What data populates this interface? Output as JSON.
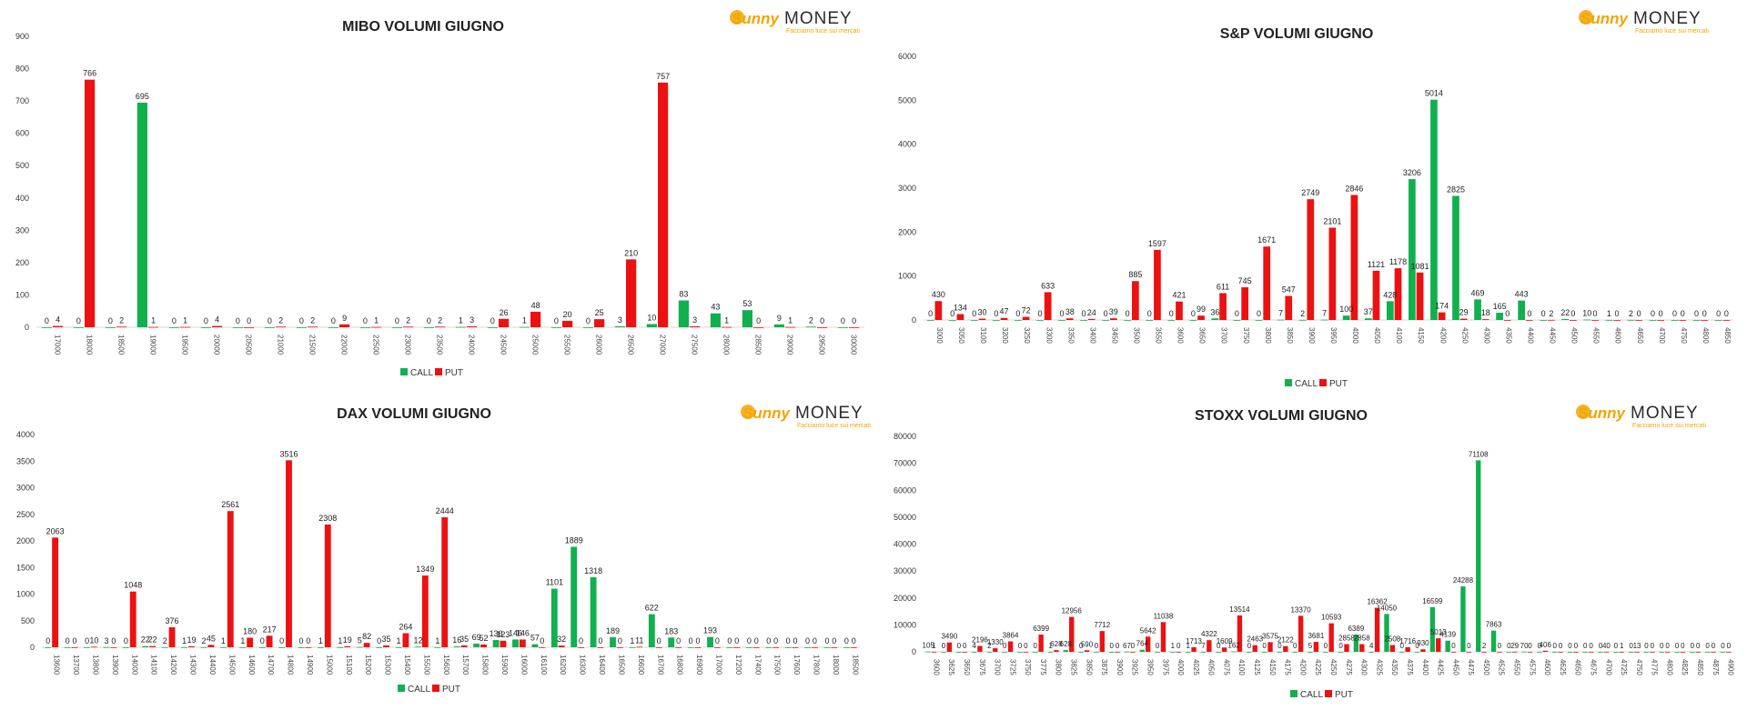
{
  "colors": {
    "call": "#11b04f",
    "put": "#ee1111",
    "axis": "#d9d9d9",
    "text": "#222222",
    "logo_orange": "#f5a400",
    "logo_dark": "#2b2b2b"
  },
  "logo": {
    "brand_a": "Sunny",
    "brand_b": "MONEY",
    "tagline": "Facciamo luce sui mercati"
  },
  "legend": {
    "call": "CALL",
    "put": "PUT"
  },
  "charts": [
    {
      "title": "MIBO VOLUMI GIUGNO",
      "chart_data": {
        "type": "bar",
        "title": "MIBO VOLUMI GIUGNO",
        "ylim": [
          0,
          900
        ],
        "yticks": [
          0,
          100,
          200,
          300,
          400,
          500,
          600,
          700,
          800,
          900
        ],
        "categories": [
          "17000",
          "18000",
          "18500",
          "19000",
          "19500",
          "20000",
          "20500",
          "21000",
          "21500",
          "22000",
          "22500",
          "23000",
          "23500",
          "24000",
          "24500",
          "25000",
          "25500",
          "26000",
          "26500",
          "27000",
          "27500",
          "28000",
          "28500",
          "29000",
          "29500",
          "30000"
        ],
        "series": [
          {
            "name": "CALL",
            "values": [
              0,
              0,
              0,
              695,
              0,
              0,
              0,
              0,
              0,
              0,
              0,
              0,
              0,
              1,
              0,
              1,
              0,
              0,
              3,
              10,
              83,
              43,
              53,
              9,
              2,
              0
            ]
          },
          {
            "name": "PUT",
            "values": [
              4,
              766,
              2,
              1,
              1,
              4,
              0,
              2,
              2,
              9,
              1,
              2,
              2,
              3,
              26,
              48,
              20,
              25,
              210,
              757,
              3,
              1,
              0,
              1,
              0,
              0
            ]
          }
        ]
      }
    },
    {
      "title": "S&P VOLUMI GIUGNO",
      "chart_data": {
        "type": "bar",
        "title": "S&P VOLUMI GIUGNO",
        "ylim": [
          0,
          6000
        ],
        "yticks": [
          0,
          1000,
          2000,
          3000,
          4000,
          5000,
          6000
        ],
        "categories": [
          "3000",
          "3050",
          "3100",
          "3200",
          "3250",
          "3300",
          "3350",
          "3400",
          "3450",
          "3500",
          "3550",
          "3600",
          "3650",
          "3700",
          "3750",
          "3800",
          "3850",
          "3900",
          "3950",
          "4000",
          "4050",
          "4100",
          "4150",
          "4200",
          "4250",
          "4300",
          "4350",
          "4400",
          "4450",
          "4500",
          "4550",
          "4600",
          "4650",
          "4700",
          "4750",
          "4800",
          "4850"
        ],
        "series": [
          {
            "name": "CALL",
            "values": [
              0,
              0,
              0,
              0,
              0,
              0,
              0,
              0,
              0,
              0,
              0,
              0,
              0,
              36,
              0,
              0,
              7,
              2,
              7,
              100,
              37,
              428,
              3206,
              5014,
              2825,
              469,
              165,
              443,
              0,
              22,
              10,
              1,
              2,
              0,
              0,
              0,
              0
            ]
          },
          {
            "name": "PUT",
            "values": [
              430,
              134,
              30,
              47,
              72,
              633,
              38,
              24,
              39,
              885,
              1597,
              421,
              99,
              611,
              745,
              1671,
              547,
              2749,
              2101,
              2846,
              1121,
              1178,
              1081,
              174,
              29,
              18,
              0,
              0,
              2,
              0,
              0,
              0,
              0,
              0,
              0,
              0,
              0
            ]
          }
        ]
      }
    },
    {
      "title": "DAX VOLUMI GIUGNO",
      "chart_data": {
        "type": "bar",
        "title": "DAX VOLUMI GIUGNO",
        "ylim": [
          0,
          4000
        ],
        "yticks": [
          0,
          500,
          1000,
          1500,
          2000,
          2500,
          3000,
          3500,
          4000
        ],
        "categories": [
          "13600",
          "13700",
          "13800",
          "13900",
          "14000",
          "14100",
          "14200",
          "14300",
          "14400",
          "14500",
          "14600",
          "14700",
          "14800",
          "14900",
          "15000",
          "15100",
          "15200",
          "15300",
          "15400",
          "15500",
          "15600",
          "15700",
          "15800",
          "15900",
          "16000",
          "16100",
          "16200",
          "16300",
          "16400",
          "16500",
          "16600",
          "16700",
          "16800",
          "16900",
          "17000",
          "17200",
          "17400",
          "17500",
          "17600",
          "17800",
          "18000",
          "18500"
        ],
        "series": [
          {
            "name": "CALL",
            "values": [
              0,
              0,
              0,
              3,
              0,
              22,
              2,
              1,
              2,
              1,
              1,
              0,
              0,
              0,
              1,
              1,
              5,
              0,
              1,
              12,
              1,
              16,
              69,
              136,
              146,
              57,
              1101,
              1889,
              1318,
              189,
              1,
              622,
              183,
              0,
              193,
              0,
              0,
              0,
              0,
              0,
              0,
              0
            ]
          },
          {
            "name": "PUT",
            "values": [
              2063,
              0,
              10,
              0,
              1048,
              22,
              376,
              19,
              45,
              2561,
              180,
              217,
              3516,
              0,
              2308,
              19,
              82,
              35,
              264,
              1349,
              2444,
              35,
              52,
              123,
              146,
              0,
              32,
              0,
              0,
              0,
              11,
              0,
              0,
              0,
              0,
              0,
              0,
              0,
              0,
              0,
              0,
              0
            ]
          }
        ]
      }
    },
    {
      "title": "STOXX VOLUMI GIUGNO",
      "chart_data": {
        "type": "bar",
        "title": "STOXX VOLUMI GIUGNO",
        "ylim": [
          0,
          80000
        ],
        "yticks": [
          0,
          10000,
          20000,
          30000,
          40000,
          50000,
          60000,
          70000,
          80000
        ],
        "categories": [
          "3600",
          "3625",
          "3650",
          "3675",
          "3700",
          "3725",
          "3750",
          "3775",
          "3800",
          "3825",
          "3850",
          "3875",
          "3900",
          "3925",
          "3950",
          "3975",
          "4000",
          "4025",
          "4050",
          "4075",
          "4100",
          "4125",
          "4150",
          "4175",
          "4200",
          "4225",
          "4250",
          "4275",
          "4300",
          "4325",
          "4350",
          "4375",
          "4400",
          "4425",
          "4450",
          "4475",
          "4500",
          "4525",
          "4550",
          "4575",
          "4600",
          "4625",
          "4650",
          "4675",
          "4700",
          "4725",
          "4750",
          "4775",
          "4800",
          "4825",
          "4850",
          "4875",
          "4900"
        ],
        "series": [
          {
            "name": "CALL",
            "values": [
              105,
              0,
              0,
              4,
              2,
              0,
              0,
              0,
              1,
              628,
              0,
              0,
              0,
              67,
              764,
              0,
              1,
              1,
              7,
              0,
              162,
              0,
              0,
              0,
              0,
              5,
              0,
              0,
              6389,
              4,
              14050,
              0,
              0,
              16599,
              4139,
              24288,
              71108,
              7863,
              0,
              70,
              0,
              0,
              0,
              0,
              0,
              0,
              0,
              0,
              0,
              0,
              0,
              0,
              0
            ]
          },
          {
            "name": "PUT",
            "values": [
              1,
              3490,
              0,
              2196,
              1330,
              3864,
              0,
              6399,
              628,
              12956,
              590,
              7712,
              0,
              0,
              5642,
              11038,
              0,
              1713,
              4322,
              1609,
              13514,
              2463,
              3575,
              2122,
              13370,
              3681,
              10593,
              2858,
              2858,
              16362,
              2508,
              1716,
              930,
              5013,
              0,
              0,
              2,
              0,
              29,
              0,
              406,
              0,
              0,
              0,
              40,
              1,
              13,
              0,
              0,
              0,
              0,
              0,
              0
            ]
          }
        ]
      }
    }
  ]
}
